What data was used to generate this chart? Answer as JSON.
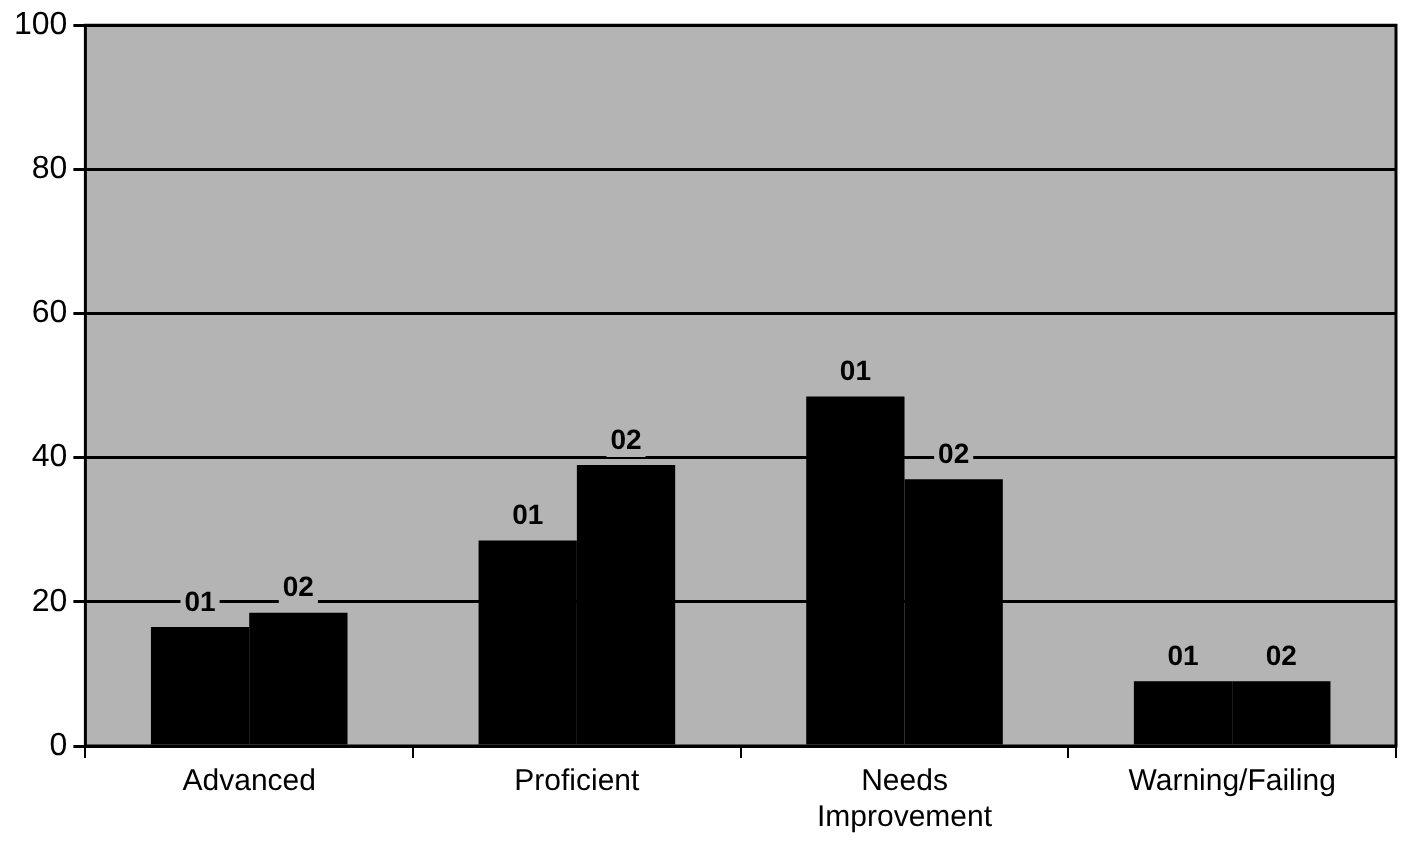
{
  "chart_data": {
    "type": "bar",
    "categories": [
      "Advanced",
      "Proficient",
      "Needs Improvement",
      "Warning/Failing"
    ],
    "series": [
      {
        "name": "01",
        "color": "#000000",
        "values": [
          16.5,
          28.5,
          48.5,
          9
        ]
      },
      {
        "name": "02",
        "color": "#000000",
        "values": [
          18.5,
          39,
          37,
          9
        ]
      }
    ],
    "ylim": [
      0,
      100
    ],
    "yticks": [
      0,
      20,
      40,
      60,
      80,
      100
    ],
    "grid": "y",
    "legend": false
  }
}
